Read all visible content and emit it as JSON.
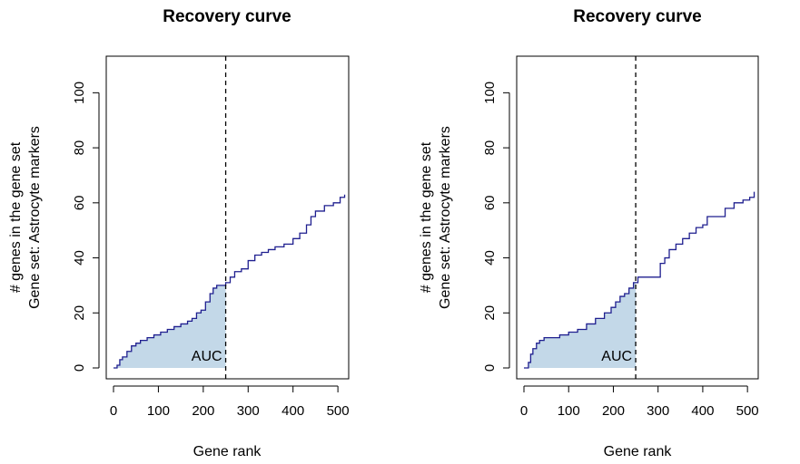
{
  "chart_data": [
    {
      "type": "area",
      "title": "Recovery curve",
      "xlabel": "Gene rank",
      "ylabel_lines": [
        "# genes in the gene set",
        "Gene set: Astrocyte markers"
      ],
      "xlim": [
        0,
        520
      ],
      "ylim": [
        0,
        110
      ],
      "xticks": [
        0,
        100,
        200,
        300,
        400,
        500
      ],
      "yticks": [
        0,
        20,
        40,
        60,
        80,
        100
      ],
      "auc_label": "AUC",
      "auc_threshold": 250,
      "colors": {
        "line": "#1f1f8f",
        "fill": "#c3d8e8",
        "threshold": "#000000"
      },
      "x": [
        0,
        8,
        14,
        20,
        30,
        40,
        50,
        60,
        75,
        90,
        105,
        120,
        135,
        150,
        165,
        175,
        185,
        195,
        205,
        215,
        222,
        230,
        240,
        250,
        260,
        270,
        285,
        300,
        315,
        330,
        345,
        360,
        380,
        400,
        415,
        430,
        440,
        450,
        470,
        490,
        505,
        515
      ],
      "y": [
        0,
        1,
        3,
        4,
        6,
        8,
        9,
        10,
        11,
        12,
        13,
        14,
        15,
        16,
        17,
        18,
        20,
        21,
        24,
        27,
        29,
        30,
        30,
        31,
        33,
        35,
        36,
        39,
        41,
        42,
        43,
        44,
        45,
        47,
        49,
        52,
        55,
        57,
        59,
        60,
        62,
        63
      ]
    },
    {
      "type": "area",
      "title": "Recovery curve",
      "xlabel": "Gene rank",
      "ylabel_lines": [
        "# genes in the gene set",
        "Gene set: Astrocyte markers"
      ],
      "xlim": [
        0,
        520
      ],
      "ylim": [
        0,
        110
      ],
      "xticks": [
        0,
        100,
        200,
        300,
        400,
        500
      ],
      "yticks": [
        0,
        20,
        40,
        60,
        80,
        100
      ],
      "auc_label": "AUC",
      "auc_threshold": 250,
      "colors": {
        "line": "#1f1f8f",
        "fill": "#c3d8e8",
        "threshold": "#000000"
      },
      "x": [
        0,
        10,
        15,
        20,
        28,
        35,
        45,
        60,
        80,
        100,
        120,
        140,
        160,
        180,
        195,
        205,
        215,
        225,
        235,
        245,
        255,
        300,
        305,
        315,
        325,
        340,
        355,
        370,
        385,
        400,
        410,
        425,
        450,
        470,
        490,
        505,
        515
      ],
      "y": [
        0,
        2,
        5,
        7,
        9,
        10,
        11,
        11,
        12,
        13,
        14,
        16,
        18,
        20,
        22,
        24,
        26,
        27,
        29,
        31,
        33,
        33,
        38,
        40,
        43,
        45,
        47,
        49,
        51,
        52,
        55,
        55,
        58,
        60,
        61,
        62,
        64
      ]
    }
  ]
}
